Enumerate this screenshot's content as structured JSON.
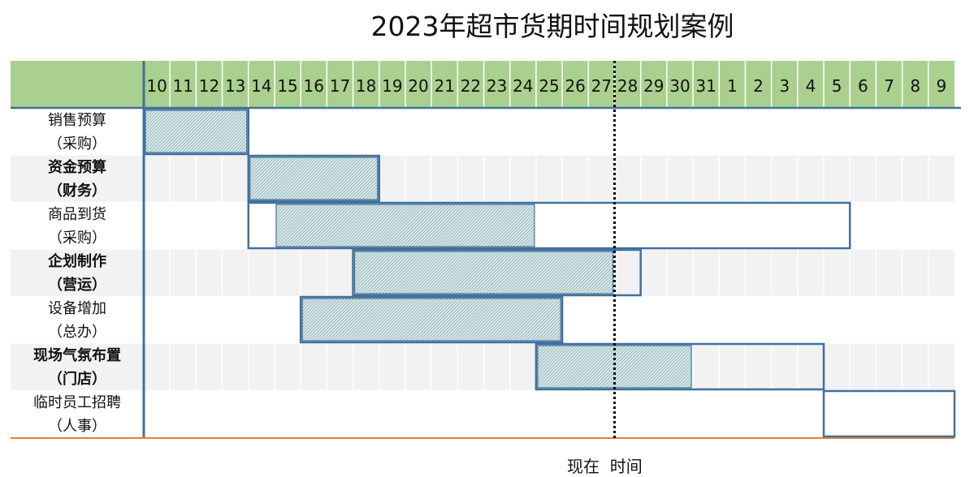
{
  "chart_data": {
    "type": "gantt",
    "title": "2023年超市货期时间规划案例",
    "columns": [
      "10",
      "11",
      "12",
      "13",
      "14",
      "15",
      "16",
      "17",
      "18",
      "19",
      "20",
      "21",
      "22",
      "23",
      "24",
      "25",
      "26",
      "27",
      "28",
      "29",
      "30",
      "31",
      "1",
      "2",
      "3",
      "4",
      "5",
      "6",
      "7",
      "8",
      "9"
    ],
    "now_column": "28",
    "now_label": "现在  时间",
    "tasks": [
      {
        "label": [
          "销售预算",
          "（采购）"
        ],
        "bold": false,
        "plan": [
          "10",
          "13"
        ],
        "actual": [
          "10",
          "13"
        ]
      },
      {
        "label": [
          "资金预算",
          "（财务）"
        ],
        "bold": true,
        "plan": [
          "14",
          "18"
        ],
        "actual": [
          "14",
          "18"
        ]
      },
      {
        "label": [
          "商品到货",
          "（采购）"
        ],
        "bold": false,
        "plan": [
          "14",
          "5"
        ],
        "actual": [
          "15",
          "24"
        ]
      },
      {
        "label": [
          "企划制作",
          "（营运）"
        ],
        "bold": true,
        "plan": [
          "18",
          "28"
        ],
        "actual": [
          "18",
          "27"
        ]
      },
      {
        "label": [
          "设备增加",
          "（总办）"
        ],
        "bold": false,
        "plan": [
          "16",
          "25"
        ],
        "actual": [
          "16",
          "25"
        ]
      },
      {
        "label": [
          "现场气氛布置",
          "（门店）"
        ],
        "bold": true,
        "plan": [
          "25",
          "4"
        ],
        "actual": [
          "25",
          "30"
        ]
      },
      {
        "label": [
          "临时员工招聘",
          "（人事）"
        ],
        "bold": false,
        "plan": [
          "5",
          "9"
        ],
        "actual": null
      }
    ],
    "colors": {
      "header_bg": "#a9d08e",
      "row_alt_bg": "#f2f2f2",
      "grid_line": "#ffffff",
      "plan_border": "#41719c",
      "actual_fill": "#d9e7e8",
      "actual_hatch": "#8fb5b8",
      "now_line": "#000000",
      "bottom_line": "#ed7d31"
    }
  }
}
